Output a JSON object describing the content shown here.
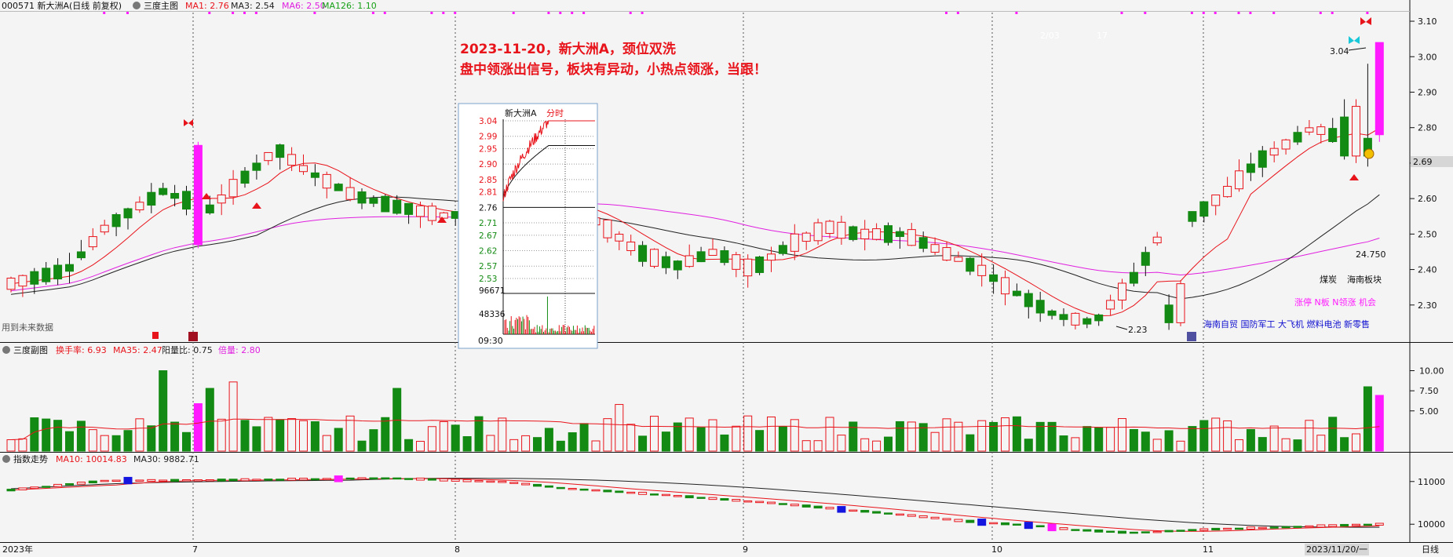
{
  "main_header": {
    "code_name": "000571 新大洲A(日线 前复权)",
    "panel_name": "三度主图",
    "ma_items": [
      {
        "label": "MA1: 2.76",
        "color": "#e8141b"
      },
      {
        "label": "MA3: 2.54",
        "color": "#222222"
      },
      {
        "label": "MA6: 2.50",
        "color": "#e020e0"
      },
      {
        "label": "MA126: 1.10",
        "color": "#16a016"
      }
    ]
  },
  "annotation": {
    "line1": "2023-11-20，新大洲A，颈位双洗",
    "line2": "盘中领涨出信号，板块有异动，小热点领涨，当跟！"
  },
  "main_chart_labels": {
    "high_label": "3.04",
    "low_label": "2.23",
    "current_price": "2.69",
    "value_right": "24.750",
    "sector_a": "煤炭",
    "sector_b": "海南板块",
    "signal_text": "涨停 N板 N领涨 机会",
    "themes_text": "海南自贸 国防军工 大飞机 燃料电池 新零售",
    "future_data_text": "用到未来数据",
    "faint_a": "2/03",
    "faint_b": "17"
  },
  "main_yaxis": [
    "3.10",
    "3.00",
    "2.90",
    "2.80",
    "2.70",
    "2.60",
    "2.50",
    "2.40",
    "2.30"
  ],
  "sub_header": {
    "panel_name": "三度副图",
    "items": [
      {
        "label": "换手率: 6.93",
        "color": "#e8141b"
      },
      {
        "label": "MA35: 2.47",
        "color": "#e8141b"
      },
      {
        "label": "阳量比: 0.75",
        "color": "#222222"
      },
      {
        "label": "倍量: 2.80",
        "color": "#e020e0"
      }
    ]
  },
  "sub_yaxis": [
    "10.00",
    "7.50",
    "5.00"
  ],
  "index_header": {
    "panel_name": "指数走势",
    "items": [
      {
        "label": "MA10: 10014.83",
        "color": "#e8141b"
      },
      {
        "label": "MA30: 9882.71",
        "color": "#222222"
      }
    ]
  },
  "index_yaxis": [
    "11000",
    "10000"
  ],
  "x_axis": {
    "labels": [
      "2023年",
      "7",
      "8",
      "9",
      "10",
      "11"
    ],
    "current_date": "2023/11/20/一",
    "period": "日线"
  },
  "inset": {
    "title": "新大洲A",
    "mode": "分时",
    "price_ticks": [
      "3.04",
      "2.99",
      "2.95",
      "2.90",
      "2.85",
      "2.81",
      "2.76",
      "2.71",
      "2.67",
      "2.62",
      "2.57",
      "2.53"
    ],
    "volume_ticks": [
      "96671",
      "48336"
    ],
    "time_label": "09:30"
  },
  "colors": {
    "up": "#e8141b",
    "down": "#138a13",
    "highlight": "#ff1aff",
    "ma_red": "#e8141b",
    "ma_black": "#222222",
    "ma_magenta": "#e020e0",
    "signal": "#ff1aff",
    "themes": "#1010d0"
  },
  "chart_data": [
    {
      "type": "candlestick",
      "title": "000571 新大洲A(日线 前复权)",
      "date_range": [
        "2023-06",
        "2023-11-20"
      ],
      "ylim": [
        2.2,
        3.12
      ],
      "last_close": 2.76,
      "period_high": 3.04,
      "period_low": 2.23,
      "signal_date": "2023-11-20",
      "series": [
        {
          "name": "MA1",
          "last": 2.76
        },
        {
          "name": "MA3",
          "last": 2.54
        },
        {
          "name": "MA6",
          "last": 2.5
        },
        {
          "name": "MA126",
          "last": 1.1
        }
      ]
    },
    {
      "type": "bar",
      "title": "三度副图",
      "ylim": [
        0,
        12
      ],
      "series": [
        {
          "name": "换手率",
          "last": 6.93
        },
        {
          "name": "MA35",
          "last": 2.47
        },
        {
          "name": "阳量比",
          "last": 0.75
        },
        {
          "name": "倍量",
          "last": 2.8
        }
      ]
    },
    {
      "type": "candlestick",
      "title": "指数走势",
      "ylim": [
        9600,
        11400
      ],
      "series": [
        {
          "name": "MA10",
          "last": 10014.83
        },
        {
          "name": "MA30",
          "last": 9882.71
        }
      ]
    },
    {
      "type": "line",
      "title": "新大洲A 分时",
      "ylim": [
        2.53,
        3.04
      ],
      "y_ticks": [
        3.04,
        2.99,
        2.95,
        2.9,
        2.85,
        2.81,
        2.76,
        2.71,
        2.67,
        2.62,
        2.57,
        2.53
      ],
      "prev_close": 2.76,
      "high": 3.04,
      "volume_ticks": [
        96671,
        48336
      ]
    }
  ]
}
